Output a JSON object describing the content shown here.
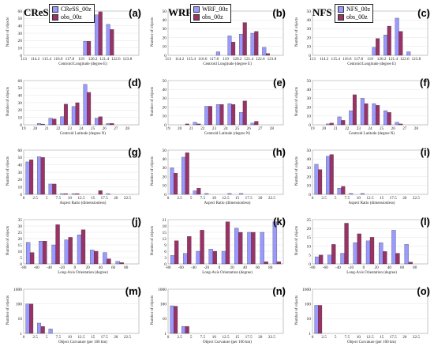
{
  "colors": {
    "model": "#9999ff",
    "obs": "#993366"
  },
  "models": [
    "CReSS",
    "WRF",
    "NFS"
  ],
  "legends": {
    "CReSS": [
      "CReSS_00z",
      "obs_00z"
    ],
    "WRF": [
      "WRF_00z",
      "obs_00z"
    ],
    "NFS": [
      "NFS_00z",
      "obs_00z"
    ]
  },
  "ylabel": "Number of objects",
  "chart_data": [
    {
      "type": "bar",
      "letter": "(a)",
      "model": "CReSS",
      "xlabel": "Centroid Longitude (degree E)",
      "ylim": [
        0,
        60
      ],
      "yticks": [
        0,
        10,
        20,
        30,
        40,
        50,
        60
      ],
      "categories": [
        "113",
        "114.2",
        "115.4",
        "116.6",
        "117.8",
        "119",
        "120.2",
        "121.4",
        "122.6",
        "123.8"
      ],
      "series": [
        {
          "values": [
            0,
            0,
            0,
            0,
            0,
            19,
            55,
            42,
            0,
            0
          ]
        },
        {
          "values": [
            0,
            0,
            0,
            0,
            0,
            19,
            59,
            35,
            0,
            0
          ]
        }
      ]
    },
    {
      "type": "bar",
      "letter": "(b)",
      "model": "WRF",
      "xlabel": "Centroid Longitude (degree E)",
      "ylim": [
        0,
        50
      ],
      "yticks": [
        0,
        10,
        20,
        30,
        40,
        50
      ],
      "categories": [
        "113",
        "114.2",
        "115.4",
        "116.6",
        "117.8",
        "119",
        "120.2",
        "121.4",
        "122.6",
        "123.8"
      ],
      "series": [
        {
          "values": [
            0,
            0,
            0,
            0,
            4,
            22,
            24,
            25,
            9,
            0
          ]
        },
        {
          "values": [
            0,
            0,
            0,
            0,
            0,
            15,
            37,
            27,
            2,
            0
          ]
        }
      ]
    },
    {
      "type": "bar",
      "letter": "(c)",
      "model": "NFS",
      "xlabel": "Centroid Longitude (degree E)",
      "ylim": [
        0,
        50
      ],
      "yticks": [
        0,
        10,
        20,
        30,
        40,
        50
      ],
      "categories": [
        "113",
        "114.2",
        "115.4",
        "116.6",
        "117.8",
        "119",
        "120.2",
        "121.4",
        "122.6",
        "123.8"
      ],
      "series": [
        {
          "values": [
            0,
            0,
            0,
            0,
            0,
            9,
            23,
            42,
            4,
            0
          ]
        },
        {
          "values": [
            0,
            0,
            0,
            0,
            0,
            19,
            33,
            27,
            0,
            0
          ]
        }
      ]
    },
    {
      "type": "bar",
      "letter": "(d)",
      "model": "CReSS",
      "xlabel": "Centroid Latitude (degree N)",
      "ylim": [
        0,
        60
      ],
      "yticks": [
        0,
        10,
        20,
        30,
        40,
        50,
        60
      ],
      "categories": [
        "19",
        "20",
        "21",
        "22",
        "23",
        "24",
        "25",
        "26",
        "27",
        "28"
      ],
      "series": [
        {
          "values": [
            0,
            2,
            9,
            11,
            25,
            55,
            9,
            2,
            0,
            0
          ]
        },
        {
          "values": [
            0,
            1,
            8,
            28,
            30,
            44,
            11,
            2,
            0,
            0
          ]
        }
      ]
    },
    {
      "type": "bar",
      "letter": "(e)",
      "model": "WRF",
      "xlabel": "Centroid Latitude (degree N)",
      "ylim": [
        0,
        50
      ],
      "yticks": [
        0,
        10,
        20,
        30,
        40,
        50
      ],
      "categories": [
        "19",
        "20",
        "21",
        "22",
        "23",
        "24",
        "25",
        "26",
        "27",
        "28"
      ],
      "series": [
        {
          "values": [
            0,
            0,
            3,
            21,
            23,
            24,
            14,
            2,
            0,
            0
          ]
        },
        {
          "values": [
            0,
            1,
            1,
            21,
            23,
            23,
            27,
            4,
            0,
            0
          ]
        }
      ]
    },
    {
      "type": "bar",
      "letter": "(f)",
      "model": "NFS",
      "xlabel": "Centroid Latitude (degree N)",
      "ylim": [
        0,
        50
      ],
      "yticks": [
        0,
        10,
        20,
        30,
        40,
        50
      ],
      "categories": [
        "19",
        "20",
        "21",
        "22",
        "23",
        "24",
        "25",
        "26",
        "27",
        "28"
      ],
      "series": [
        {
          "values": [
            0,
            1,
            9,
            16,
            30,
            24,
            16,
            3,
            0,
            0
          ]
        },
        {
          "values": [
            0,
            2,
            5,
            34,
            24,
            22,
            14,
            1,
            0,
            0
          ]
        }
      ]
    },
    {
      "type": "bar",
      "letter": "(g)",
      "model": "CReSS",
      "xlabel": "Aspect Ratio (dimensionless)",
      "ylim": [
        0,
        60
      ],
      "yticks": [
        0,
        10,
        20,
        30,
        40,
        50,
        60
      ],
      "categories": [
        "0",
        "2.5",
        "5",
        "7.5",
        "10",
        "12.5",
        "15",
        "17.5",
        "20",
        "22.5"
      ],
      "series": [
        {
          "values": [
            44,
            51,
            14,
            1,
            1,
            0,
            0,
            1,
            0,
            0
          ]
        },
        {
          "values": [
            47,
            50,
            14,
            1,
            1,
            0,
            5,
            0,
            0,
            0
          ]
        }
      ]
    },
    {
      "type": "bar",
      "letter": "(h)",
      "model": "WRF",
      "xlabel": "Aspect Ratio (dimensionless)",
      "ylim": [
        0,
        50
      ],
      "yticks": [
        0,
        10,
        20,
        30,
        40,
        50
      ],
      "categories": [
        "0",
        "2.5",
        "5",
        "7.5",
        "10",
        "12.5",
        "15",
        "17.5",
        "20",
        "22.5"
      ],
      "series": [
        {
          "values": [
            30,
            42,
            4,
            1,
            0,
            1,
            1,
            0,
            0,
            0
          ]
        },
        {
          "values": [
            24,
            47,
            7,
            0,
            0,
            0,
            0,
            0,
            0,
            0
          ]
        }
      ]
    },
    {
      "type": "bar",
      "letter": "(i)",
      "model": "NFS",
      "xlabel": "Aspect Ratio (dimensionless)",
      "ylim": [
        0,
        50
      ],
      "yticks": [
        0,
        10,
        20,
        30,
        40,
        50
      ],
      "categories": [
        "0",
        "2.5",
        "5",
        "7.5",
        "10",
        "12.5",
        "15",
        "17.5",
        "20",
        "22.5"
      ],
      "series": [
        {
          "values": [
            34,
            43,
            7,
            1,
            1,
            0,
            0,
            0,
            0,
            0
          ]
        },
        {
          "values": [
            28,
            45,
            9,
            0,
            0,
            0,
            0,
            0,
            0,
            0
          ]
        }
      ]
    },
    {
      "type": "bar",
      "letter": "(j)",
      "model": "CReSS",
      "xlabel": "Long-Axis Orientation (degree)",
      "ylim": [
        0,
        35
      ],
      "yticks": [
        0,
        5,
        10,
        15,
        20,
        25,
        30,
        35
      ],
      "categories": [
        "-80",
        "-60",
        "-40",
        "-20",
        "0",
        "20",
        "40",
        "60",
        "80"
      ],
      "series": [
        {
          "values": [
            17,
            18,
            15,
            19,
            23,
            11,
            9,
            2,
            0
          ]
        },
        {
          "values": [
            9,
            18,
            31,
            21,
            27,
            10,
            4,
            1,
            0
          ]
        }
      ]
    },
    {
      "type": "bar",
      "letter": "(k)",
      "model": "WRF",
      "xlabel": "Long-Axis Orientation (degree)",
      "ylim": [
        0,
        21
      ],
      "yticks": [
        0,
        3,
        6,
        9,
        12,
        15,
        18,
        21
      ],
      "categories": [
        "-80",
        "-60",
        "-40",
        "-20",
        "0",
        "20",
        "40",
        "60",
        "80"
      ],
      "series": [
        {
          "values": [
            4,
            5,
            6,
            7,
            6,
            17,
            15,
            15,
            20
          ]
        },
        {
          "values": [
            11,
            13,
            16,
            6,
            20,
            15,
            15,
            1,
            1
          ]
        }
      ]
    },
    {
      "type": "bar",
      "letter": "(l)",
      "model": "NFS",
      "xlabel": "Long-Axis Orientation (degree)",
      "ylim": [
        0,
        25
      ],
      "yticks": [
        0,
        5,
        10,
        15,
        20,
        25
      ],
      "categories": [
        "-80",
        "-60",
        "-40",
        "-20",
        "0",
        "20",
        "40",
        "60",
        "80"
      ],
      "series": [
        {
          "values": [
            4,
            5,
            6,
            12,
            13,
            12,
            19,
            11,
            0
          ]
        },
        {
          "values": [
            5,
            11,
            23,
            17,
            15,
            7,
            6,
            1,
            0
          ]
        }
      ]
    },
    {
      "type": "bar",
      "letter": "(m)",
      "model": "CReSS",
      "xlabel": "Object Curvature (per 100 km)",
      "ylog": true,
      "ylim": [
        1,
        1000
      ],
      "yticks": [
        1,
        10,
        100,
        1000
      ],
      "categories": [
        "0",
        "2.5",
        "5",
        "7.5",
        "10",
        "12.5",
        "15",
        "17.5",
        "20",
        "22.5"
      ],
      "series": [
        {
          "values": [
            100,
            5,
            2,
            0,
            0,
            0,
            0,
            0,
            0,
            0
          ]
        },
        {
          "values": [
            100,
            3,
            0,
            0,
            0,
            0,
            0,
            0,
            0,
            0
          ]
        }
      ]
    },
    {
      "type": "bar",
      "letter": "(n)",
      "model": "WRF",
      "xlabel": "Object Curvature (per 100 km)",
      "ylog": true,
      "ylim": [
        1,
        1000
      ],
      "yticks": [
        1,
        10,
        100,
        1000
      ],
      "categories": [
        "0",
        "2.5",
        "5",
        "7.5",
        "10",
        "12.5",
        "15",
        "17.5",
        "20",
        "22.5"
      ],
      "series": [
        {
          "values": [
            75,
            3,
            0,
            0,
            0,
            0,
            0,
            0,
            0,
            0
          ]
        },
        {
          "values": [
            70,
            3,
            0,
            0,
            0,
            0,
            0,
            0,
            0,
            0
          ]
        }
      ]
    },
    {
      "type": "bar",
      "letter": "(o)",
      "model": "NFS",
      "xlabel": "Object Curvature (per 100 km)",
      "ylog": true,
      "ylim": [
        1,
        1000
      ],
      "yticks": [
        1,
        10,
        100,
        1000
      ],
      "categories": [
        "0",
        "2.5",
        "5",
        "7.5",
        "10",
        "12.5",
        "15",
        "17.5",
        "20",
        "22.5"
      ],
      "series": [
        {
          "values": [
            80,
            0,
            0,
            0,
            0,
            0,
            0,
            0,
            0,
            0
          ]
        },
        {
          "values": [
            80,
            0,
            0,
            0,
            0,
            0,
            0,
            0,
            0,
            0
          ]
        }
      ]
    }
  ]
}
